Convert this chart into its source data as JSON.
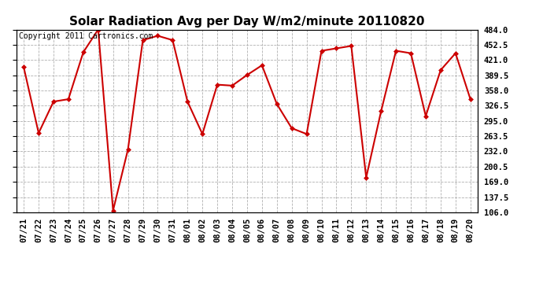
{
  "title": "Solar Radiation Avg per Day W/m2/minute 20110820",
  "copyright_text": "Copyright 2011 Cartronics.com",
  "dates": [
    "07/21",
    "07/22",
    "07/23",
    "07/24",
    "07/25",
    "07/26",
    "07/27",
    "07/28",
    "07/29",
    "07/30",
    "07/31",
    "08/01",
    "08/02",
    "08/03",
    "08/04",
    "08/05",
    "08/06",
    "08/07",
    "08/08",
    "08/09",
    "08/10",
    "08/11",
    "08/12",
    "08/13",
    "08/14",
    "08/15",
    "08/16",
    "08/17",
    "08/18",
    "08/19",
    "08/20"
  ],
  "values": [
    406,
    270,
    335,
    340,
    437,
    484,
    110,
    236,
    462,
    471,
    462,
    335,
    268,
    370,
    368,
    390,
    410,
    330,
    280,
    268,
    440,
    445,
    450,
    178,
    315,
    440,
    435,
    305,
    400,
    435,
    340
  ],
  "line_color": "#cc0000",
  "marker": "D",
  "marker_size": 3,
  "marker_color": "#cc0000",
  "background_color": "#ffffff",
  "grid_color": "#b0b0b0",
  "ylim": [
    106.0,
    484.0
  ],
  "yticks": [
    106.0,
    137.5,
    169.0,
    200.5,
    232.0,
    263.5,
    295.0,
    326.5,
    358.0,
    389.5,
    421.0,
    452.5,
    484.0
  ],
  "title_fontsize": 11,
  "copyright_fontsize": 7,
  "tick_fontsize": 7.5
}
